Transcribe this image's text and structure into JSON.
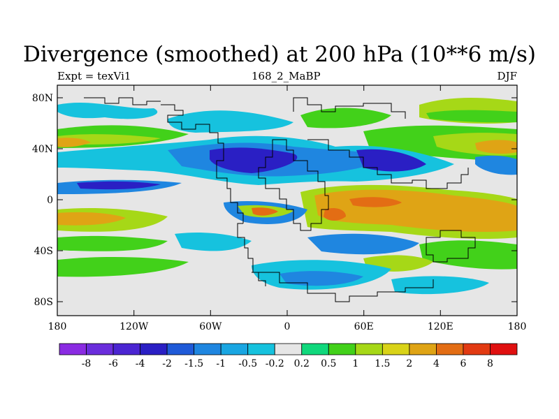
{
  "title": "Divergence (smoothed) at 200 hPa (10**6 m/s)",
  "left_subtitle": "Expt = texVi1",
  "center_subtitle": "168_2_MaBP",
  "right_subtitle": "DJF",
  "y_ticks": [
    "80N",
    "40N",
    "0",
    "40S",
    "80S"
  ],
  "x_ticks": [
    "180",
    "120W",
    "60W",
    "0",
    "60E",
    "120E",
    "180"
  ],
  "colorbar": {
    "labels": [
      "-8",
      "-6",
      "-4",
      "-2",
      "-1.5",
      "-1",
      "-0.5",
      "-0.2",
      "0.2",
      "0.5",
      "1",
      "1.5",
      "2",
      "4",
      "6",
      "8"
    ],
    "colors": [
      "#8a2be2",
      "#6a2ddc",
      "#4b25d2",
      "#2a1fc4",
      "#1f5ad8",
      "#1f86e0",
      "#19a6e2",
      "#16c2de",
      "#e6e6e6",
      "#10d87c",
      "#42d11a",
      "#a6d817",
      "#d9d318",
      "#dfa415",
      "#e36d14",
      "#e23a12",
      "#e01010"
    ]
  },
  "chart_data": {
    "type": "heatmap",
    "title": "Divergence (smoothed) at 200 hPa (10**6 m/s)",
    "x_range_deg": [
      -180,
      180
    ],
    "y_range_deg": [
      -90,
      90
    ],
    "levels": [
      -8,
      -6,
      -4,
      -2,
      -1.5,
      -1,
      -0.5,
      -0.2,
      0.2,
      0.5,
      1,
      1.5,
      2,
      4,
      6,
      8
    ]
  },
  "colors": {
    "background": "#e6e6e6",
    "coast": "#000000"
  }
}
